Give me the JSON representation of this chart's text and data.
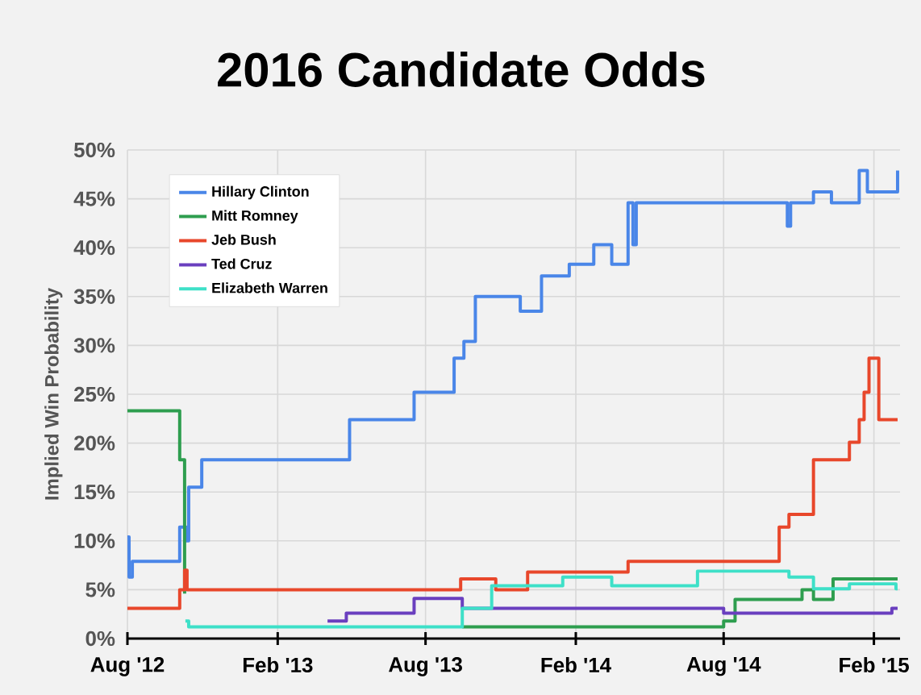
{
  "chart_data": {
    "type": "step",
    "title": "2016 Candidate Odds",
    "ylabel": "Implied Win Probability",
    "xlim": [
      "2012-08-01",
      "2015-03-05"
    ],
    "ylim": [
      0,
      50
    ],
    "xticks": [
      {
        "value": "2012-08-01",
        "label": "Aug '12"
      },
      {
        "value": "2013-02-01",
        "label": "Feb '13"
      },
      {
        "value": "2013-08-01",
        "label": "Aug '13"
      },
      {
        "value": "2014-02-01",
        "label": "Feb '14"
      },
      {
        "value": "2014-08-01",
        "label": "Aug '14"
      },
      {
        "value": "2015-02-01",
        "label": "Feb '15"
      }
    ],
    "yticks": [
      {
        "value": 0,
        "label": "0%"
      },
      {
        "value": 5,
        "label": "5%"
      },
      {
        "value": 10,
        "label": "10%"
      },
      {
        "value": 15,
        "label": "15%"
      },
      {
        "value": 20,
        "label": "20%"
      },
      {
        "value": 25,
        "label": "25%"
      },
      {
        "value": 30,
        "label": "30%"
      },
      {
        "value": 35,
        "label": "35%"
      },
      {
        "value": 40,
        "label": "40%"
      },
      {
        "value": 45,
        "label": "45%"
      },
      {
        "value": 50,
        "label": "50%"
      }
    ],
    "grid": true,
    "legend": "top left",
    "series": [
      {
        "name": "Hillary Clinton",
        "color": "#4a86e8",
        "x": [
          "2012-08-01",
          "2012-08-03",
          "2012-08-07",
          "2012-10-04",
          "2012-10-12",
          "2012-10-15",
          "2012-10-31",
          "2013-04-30",
          "2013-07-18",
          "2013-09-05",
          "2013-09-17",
          "2013-10-01",
          "2013-11-25",
          "2013-12-21",
          "2014-01-24",
          "2014-02-23",
          "2014-03-17",
          "2014-04-06",
          "2014-04-12",
          "2014-04-16",
          "2014-10-18",
          "2014-10-22",
          "2014-11-19",
          "2014-12-11",
          "2015-01-14",
          "2015-01-24",
          "2015-03-02"
        ],
        "values": [
          10.4,
          6.3,
          7.9,
          11.4,
          10.0,
          15.5,
          18.3,
          22.4,
          25.2,
          28.7,
          30.4,
          35.0,
          33.5,
          37.1,
          38.3,
          40.3,
          38.3,
          44.6,
          40.3,
          44.6,
          42.2,
          44.6,
          45.7,
          44.6,
          47.9,
          45.7,
          47.9
        ]
      },
      {
        "name": "Mitt Romney",
        "color": "#2e9e4f",
        "x": [
          "2012-08-01",
          "2012-10-04",
          "2012-10-10",
          "2012-10-31",
          "2013-09-15",
          "2014-08-01",
          "2014-08-15",
          "2014-11-05",
          "2014-11-19",
          "2014-12-13",
          "2015-03-02"
        ],
        "values": [
          23.3,
          18.3,
          4.6,
          null,
          1.2,
          1.8,
          4.0,
          5.0,
          4.0,
          6.1,
          6.1
        ]
      },
      {
        "name": "Jeb Bush",
        "color": "#e8472b",
        "x": [
          "2012-08-01",
          "2012-10-04",
          "2012-10-10",
          "2012-10-13",
          "2013-09-13",
          "2013-10-26",
          "2013-12-04",
          "2014-04-06",
          "2014-10-08",
          "2014-10-20",
          "2014-11-19",
          "2015-01-02",
          "2015-01-14",
          "2015-01-20",
          "2015-01-26",
          "2015-02-07",
          "2015-03-02"
        ],
        "values": [
          3.1,
          5.0,
          7.0,
          5.0,
          6.1,
          5.0,
          6.8,
          7.9,
          11.4,
          12.7,
          18.3,
          20.1,
          22.4,
          25.2,
          28.7,
          22.4,
          22.4
        ]
      },
      {
        "name": "Ted Cruz",
        "color": "#6a3fbf",
        "x": [
          "2013-04-03",
          "2013-04-26",
          "2013-07-18",
          "2013-09-15",
          "2014-08-01",
          "2015-02-23",
          "2015-03-02"
        ],
        "values": [
          1.8,
          2.6,
          4.1,
          3.1,
          2.6,
          3.1,
          3.1
        ]
      },
      {
        "name": "Elizabeth Warren",
        "color": "#3ee0c8",
        "x": [
          "2012-10-11",
          "2012-10-15",
          "2013-09-15",
          "2013-10-21",
          "2014-01-16",
          "2014-03-17",
          "2014-06-30",
          "2014-10-20",
          "2014-11-19",
          "2015-01-02",
          "2015-02-28",
          "2015-03-02"
        ],
        "values": [
          1.8,
          1.2,
          3.1,
          5.4,
          6.3,
          5.4,
          6.9,
          6.3,
          5.1,
          5.6,
          5.1,
          5.1
        ]
      }
    ]
  }
}
